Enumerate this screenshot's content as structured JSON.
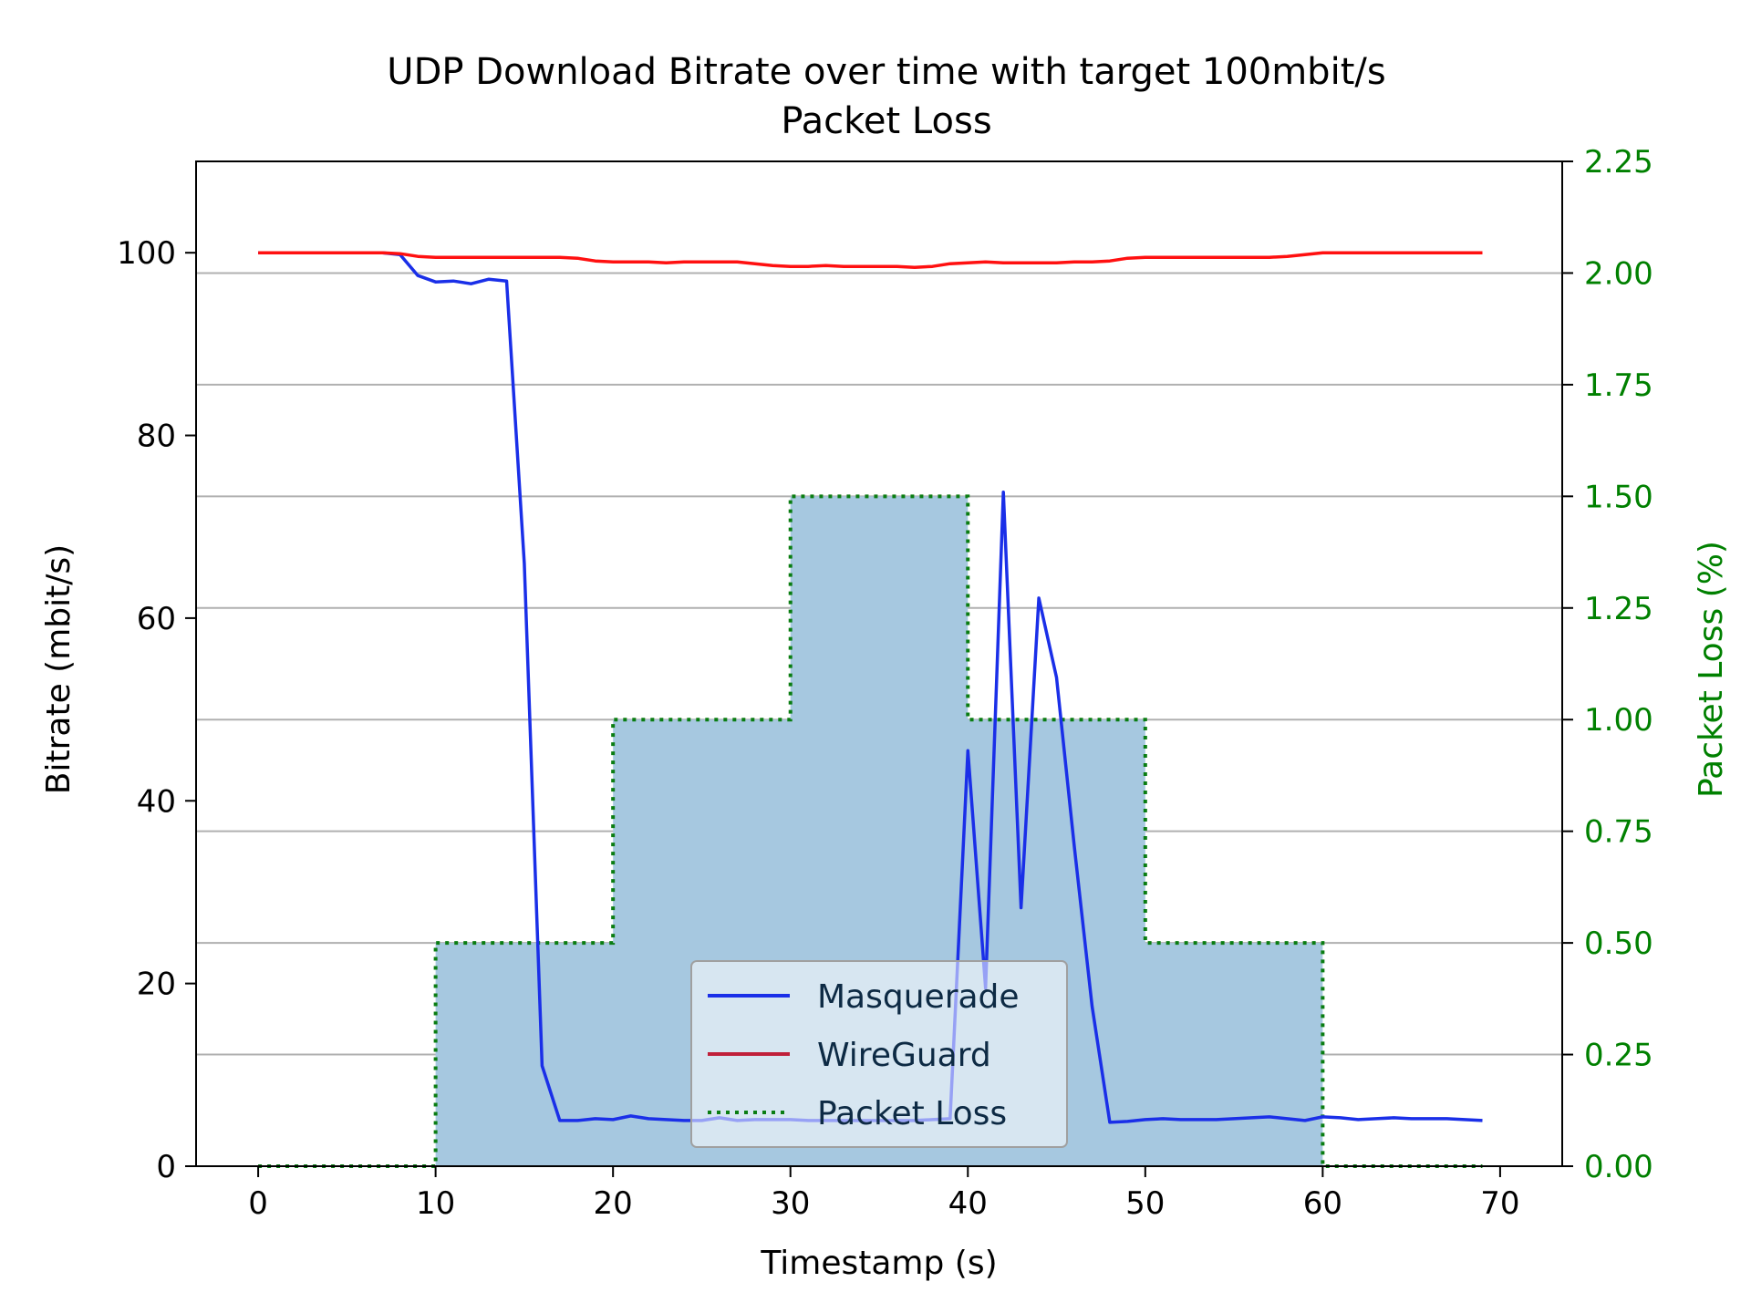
{
  "chart_data": {
    "type": "line",
    "title": "UDP Download Bitrate over time with target 100mbit/s",
    "subtitle": "Packet Loss",
    "xlabel": "Timestamp (s)",
    "ylabel": "Bitrate (mbit/s)",
    "y2label": "Packet Loss (%)",
    "xlim": [
      -3.5,
      73.5
    ],
    "ylim": [
      0,
      110
    ],
    "y2lim": [
      0,
      2.25
    ],
    "xticks": [
      0,
      10,
      20,
      30,
      40,
      50,
      60,
      70
    ],
    "yticks": [
      0,
      20,
      40,
      60,
      80,
      100
    ],
    "y2ticks": [
      "0.00",
      "0.25",
      "0.50",
      "0.75",
      "1.00",
      "1.25",
      "1.50",
      "1.75",
      "2.00",
      "2.25"
    ],
    "grid": "horizontal (secondary axis)",
    "legend_position": "lower-center",
    "colors": {
      "masquerade": "#1a2fe8",
      "wireguard": "#ff1010",
      "packet_loss_line": "#0a7d12",
      "packet_loss_fill": "#a6c8e0",
      "secondary_axis": "#008000",
      "grid": "#b0b0b0"
    },
    "series": [
      {
        "name": "Masquerade",
        "axis": "left",
        "style": "solid",
        "x": [
          0,
          1,
          2,
          3,
          4,
          5,
          6,
          7,
          8,
          9,
          10,
          11,
          12,
          13,
          14,
          15,
          16,
          17,
          18,
          19,
          20,
          21,
          22,
          23,
          24,
          25,
          26,
          27,
          28,
          29,
          30,
          31,
          32,
          33,
          34,
          35,
          36,
          37,
          38,
          39,
          40,
          41,
          42,
          43,
          44,
          45,
          46,
          47,
          48,
          49,
          50,
          51,
          52,
          53,
          54,
          55,
          56,
          57,
          58,
          59,
          60,
          61,
          62,
          63,
          64,
          65,
          66,
          67,
          68,
          69
        ],
        "values": [
          100,
          100,
          100,
          100,
          100,
          100,
          100,
          100,
          99.8,
          97.5,
          96.8,
          96.9,
          96.6,
          97.1,
          96.9,
          66,
          11,
          5,
          5,
          5.2,
          5.1,
          5.5,
          5.2,
          5.1,
          5,
          5,
          5.3,
          5,
          5.1,
          5.1,
          5.1,
          5,
          5,
          5,
          5,
          5,
          5,
          5,
          5.1,
          5.2,
          45.5,
          19.5,
          73.8,
          28.3,
          62.2,
          53.5,
          35,
          17.5,
          4.8,
          4.9,
          5.1,
          5.2,
          5.1,
          5.1,
          5.1,
          5.2,
          5.3,
          5.4,
          5.2,
          5,
          5.4,
          5.3,
          5.1,
          5.2,
          5.3,
          5.2,
          5.2,
          5.2,
          5.1,
          5
        ]
      },
      {
        "name": "WireGuard",
        "axis": "left",
        "style": "solid",
        "x": [
          0,
          1,
          2,
          3,
          4,
          5,
          6,
          7,
          8,
          9,
          10,
          11,
          12,
          13,
          14,
          15,
          16,
          17,
          18,
          19,
          20,
          21,
          22,
          23,
          24,
          25,
          26,
          27,
          28,
          29,
          30,
          31,
          32,
          33,
          34,
          35,
          36,
          37,
          38,
          39,
          40,
          41,
          42,
          43,
          44,
          45,
          46,
          47,
          48,
          49,
          50,
          51,
          52,
          53,
          54,
          55,
          56,
          57,
          58,
          59,
          60,
          61,
          62,
          63,
          64,
          65,
          66,
          67,
          68,
          69
        ],
        "values": [
          100,
          100,
          100,
          100,
          100,
          100,
          100,
          100,
          99.9,
          99.6,
          99.5,
          99.5,
          99.5,
          99.5,
          99.5,
          99.5,
          99.5,
          99.5,
          99.4,
          99.1,
          99,
          99,
          99,
          98.9,
          99,
          99,
          99,
          99,
          98.8,
          98.6,
          98.5,
          98.5,
          98.6,
          98.5,
          98.5,
          98.5,
          98.5,
          98.4,
          98.5,
          98.8,
          98.9,
          99,
          98.9,
          98.9,
          98.9,
          98.9,
          99,
          99,
          99.1,
          99.4,
          99.5,
          99.5,
          99.5,
          99.5,
          99.5,
          99.5,
          99.5,
          99.5,
          99.6,
          99.8,
          100,
          100,
          100,
          100,
          100,
          100,
          100,
          100,
          100,
          100
        ]
      },
      {
        "name": "Packet Loss",
        "axis": "right",
        "style": "dotted-step-filled",
        "x": [
          0,
          10,
          20,
          30,
          40,
          50,
          60,
          69
        ],
        "values": [
          0,
          0.5,
          1.0,
          1.5,
          1.0,
          0.5,
          0,
          0
        ]
      }
    ]
  }
}
